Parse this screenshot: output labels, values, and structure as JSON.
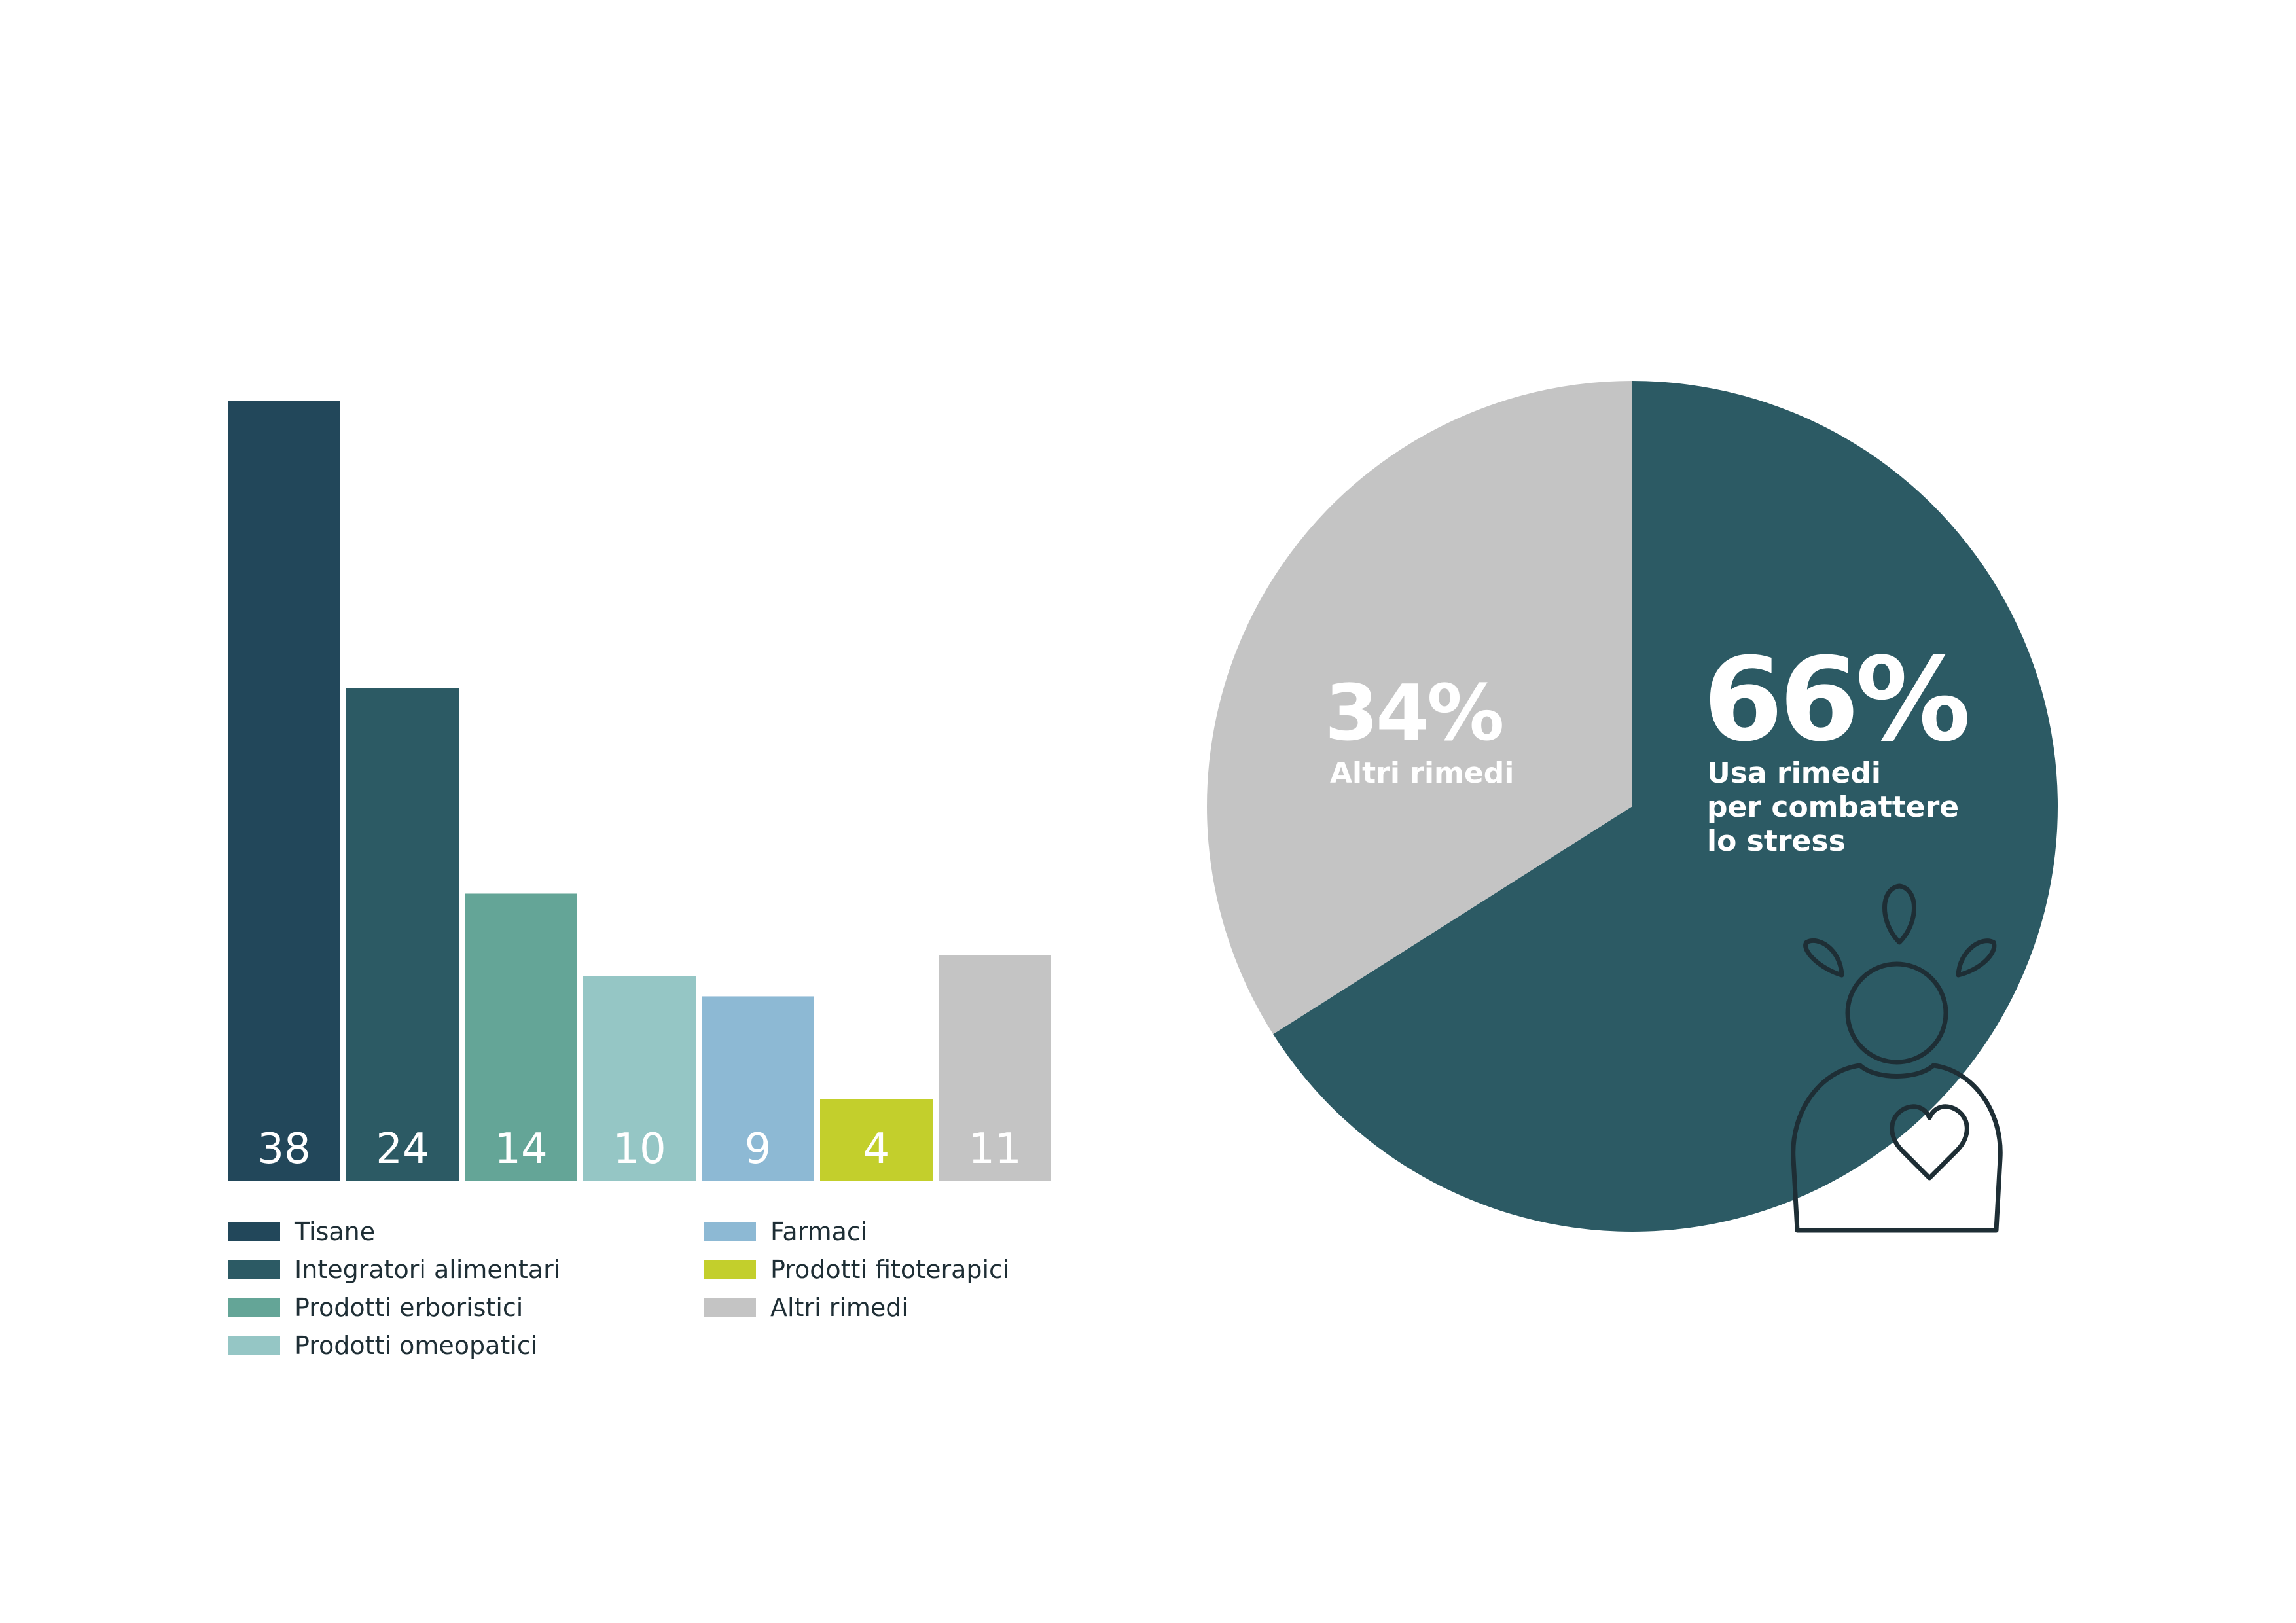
{
  "chart_data": [
    {
      "type": "bar",
      "categories": [
        "Tisane",
        "Integratori alimentari",
        "Prodotti erboristici",
        "Prodotti omeopatici",
        "Farmaci",
        "Prodotti fitoterapici",
        "Altri rimedi"
      ],
      "values": [
        38,
        24,
        14,
        10,
        9,
        4,
        11
      ],
      "value_labels": [
        "38",
        "24",
        "14",
        "10",
        "9",
        "4",
        "11"
      ],
      "colors": [
        "#22475a",
        "#2c5a64",
        "#64a597",
        "#95c6c5",
        "#8db9d4",
        "#c3cf2c",
        "#c4c4c4"
      ],
      "ylim": [
        0,
        38
      ],
      "grid": false,
      "legend_position": "bottom",
      "legend": [
        {
          "label": "Tisane",
          "color": "#22475a"
        },
        {
          "label": "Integratori alimentari",
          "color": "#2c5a64"
        },
        {
          "label": "Prodotti erboristici",
          "color": "#64a597"
        },
        {
          "label": "Prodotti omeopatici",
          "color": "#95c6c5"
        },
        {
          "label": "Farmaci",
          "color": "#8db9d4"
        },
        {
          "label": "Prodotti fitoterapici",
          "color": "#c3cf2c"
        },
        {
          "label": "Altri rimedi",
          "color": "#c4c4c4"
        }
      ]
    },
    {
      "type": "pie",
      "slices": [
        {
          "value": 66,
          "value_label": "66%",
          "caption": [
            "Usa rimedi",
            "per combattere",
            "lo stress"
          ],
          "color": "#2c5a64"
        },
        {
          "value": 34,
          "value_label": "34%",
          "caption": [
            "Altri rimedi"
          ],
          "color": "#c4c4c4"
        }
      ],
      "start": "top",
      "direction": "clockwise"
    }
  ],
  "icon": {
    "name": "stressed-person-heart-icon",
    "stroke_color": "#1e2e35"
  }
}
